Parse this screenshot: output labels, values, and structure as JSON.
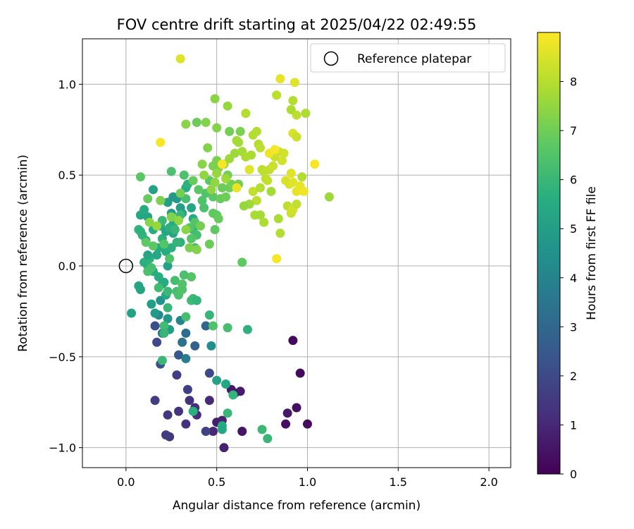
{
  "chart_data": {
    "type": "scatter",
    "title": "FOV centre drift starting at 2025/04/22 02:49:55",
    "xlabel": "Angular distance from reference (arcmin)",
    "ylabel": "Rotation from reference (arcmin)",
    "xlim": [
      -0.24,
      2.12
    ],
    "ylim": [
      -1.11,
      1.25
    ],
    "x_ticks": [
      0.0,
      0.5,
      1.0,
      1.5,
      2.0
    ],
    "x_tick_labels": [
      "0.0",
      "0.5",
      "1.0",
      "1.5",
      "2.0"
    ],
    "y_ticks": [
      -1.0,
      -0.5,
      0.0,
      0.5,
      1.0
    ],
    "y_tick_labels": [
      "−1.0",
      "−0.5",
      "0.0",
      "0.5",
      "1.0"
    ],
    "grid": true,
    "legend": {
      "placement": "top-right",
      "entries": [
        "Reference platepar"
      ]
    },
    "reference_point": {
      "x": 0.0,
      "y": 0.0
    },
    "colorbar": {
      "label": "Hours from first FF file",
      "colormap": "viridis",
      "range": [
        0,
        9
      ],
      "ticks": [
        0,
        1,
        2,
        3,
        4,
        5,
        6,
        7,
        8
      ],
      "tick_labels": [
        "0",
        "1",
        "2",
        "3",
        "4",
        "5",
        "6",
        "7",
        "8"
      ]
    },
    "points": [
      {
        "x": 0.92,
        "y": -0.41,
        "h": 0.2
      },
      {
        "x": 0.96,
        "y": -0.59,
        "h": 0.2
      },
      {
        "x": 0.94,
        "y": -0.78,
        "h": 0.4
      },
      {
        "x": 1.0,
        "y": -0.87,
        "h": 0.3
      },
      {
        "x": 0.88,
        "y": -0.87,
        "h": 0.4
      },
      {
        "x": 0.89,
        "y": -0.81,
        "h": 0.6
      },
      {
        "x": 0.64,
        "y": -0.91,
        "h": 0.5
      },
      {
        "x": 0.58,
        "y": -0.68,
        "h": 0.6
      },
      {
        "x": 0.6,
        "y": -0.7,
        "h": 0.6
      },
      {
        "x": 0.63,
        "y": -0.69,
        "h": 0.7
      },
      {
        "x": 0.5,
        "y": -0.86,
        "h": 0.8
      },
      {
        "x": 0.53,
        "y": -0.85,
        "h": 0.9
      },
      {
        "x": 0.54,
        "y": -1.0,
        "h": 0.9
      },
      {
        "x": 0.48,
        "y": -0.91,
        "h": 1.0
      },
      {
        "x": 0.46,
        "y": -0.74,
        "h": 1.1
      },
      {
        "x": 0.39,
        "y": -0.82,
        "h": 1.1
      },
      {
        "x": 0.38,
        "y": -0.78,
        "h": 1.2
      },
      {
        "x": 0.35,
        "y": -0.74,
        "h": 1.3
      },
      {
        "x": 0.33,
        "y": -0.87,
        "h": 1.3
      },
      {
        "x": 0.29,
        "y": -0.8,
        "h": 1.4
      },
      {
        "x": 0.23,
        "y": -0.82,
        "h": 1.5
      },
      {
        "x": 0.24,
        "y": -0.94,
        "h": 1.5
      },
      {
        "x": 0.22,
        "y": -0.93,
        "h": 1.6
      },
      {
        "x": 0.16,
        "y": -0.74,
        "h": 1.6
      },
      {
        "x": 0.34,
        "y": -0.68,
        "h": 1.7
      },
      {
        "x": 0.28,
        "y": -0.6,
        "h": 1.7
      },
      {
        "x": 0.44,
        "y": -0.91,
        "h": 1.8
      },
      {
        "x": 0.46,
        "y": -0.59,
        "h": 2.0
      },
      {
        "x": 0.17,
        "y": -0.42,
        "h": 2.0
      },
      {
        "x": 0.16,
        "y": -0.33,
        "h": 2.2
      },
      {
        "x": 0.19,
        "y": -0.54,
        "h": 2.3
      },
      {
        "x": 0.29,
        "y": -0.49,
        "h": 2.5
      },
      {
        "x": 0.38,
        "y": -0.44,
        "h": 2.8
      },
      {
        "x": 0.44,
        "y": -0.33,
        "h": 3.0
      },
      {
        "x": 0.33,
        "y": -0.37,
        "h": 3.2
      },
      {
        "x": 0.31,
        "y": -0.42,
        "h": 3.4
      },
      {
        "x": 0.2,
        "y": -0.37,
        "h": 3.5
      },
      {
        "x": 0.33,
        "y": -0.51,
        "h": 3.8
      },
      {
        "x": 0.3,
        "y": -0.3,
        "h": 4.0
      },
      {
        "x": 0.18,
        "y": -0.27,
        "h": 4.2
      },
      {
        "x": 0.47,
        "y": -0.44,
        "h": 4.5
      },
      {
        "x": 0.19,
        "y": -0.19,
        "h": 4.6
      },
      {
        "x": 0.23,
        "y": -0.29,
        "h": 4.8
      },
      {
        "x": 0.16,
        "y": -0.26,
        "h": 4.9
      },
      {
        "x": 0.24,
        "y": -0.35,
        "h": 5.0
      },
      {
        "x": 0.14,
        "y": -0.21,
        "h": 5.1
      },
      {
        "x": 0.03,
        "y": -0.26,
        "h": 5.2
      },
      {
        "x": 0.07,
        "y": -0.11,
        "h": 5.3
      },
      {
        "x": 0.08,
        "y": -0.13,
        "h": 5.3
      },
      {
        "x": 0.22,
        "y": -0.16,
        "h": 5.4
      },
      {
        "x": 0.2,
        "y": -0.1,
        "h": 5.5
      },
      {
        "x": 0.21,
        "y": -0.09,
        "h": 5.5
      },
      {
        "x": 0.18,
        "y": -0.06,
        "h": 5.6
      },
      {
        "x": 0.15,
        "y": -0.03,
        "h": 5.6
      },
      {
        "x": 0.12,
        "y": 0.0,
        "h": 5.7
      },
      {
        "x": 0.1,
        "y": 0.02,
        "h": 5.7
      },
      {
        "x": 0.13,
        "y": 0.04,
        "h": 5.8
      },
      {
        "x": 0.23,
        "y": 0.0,
        "h": 5.2
      },
      {
        "x": 0.12,
        "y": 0.06,
        "h": 5.3
      },
      {
        "x": 0.17,
        "y": 0.06,
        "h": 5.4
      },
      {
        "x": 0.18,
        "y": 0.1,
        "h": 5.5
      },
      {
        "x": 0.22,
        "y": 0.08,
        "h": 5.6
      },
      {
        "x": 0.25,
        "y": 0.1,
        "h": 5.7
      },
      {
        "x": 0.2,
        "y": 0.15,
        "h": 5.8
      },
      {
        "x": 0.09,
        "y": 0.17,
        "h": 5.9
      },
      {
        "x": 0.07,
        "y": 0.2,
        "h": 5.9
      },
      {
        "x": 0.08,
        "y": 0.19,
        "h": 5.8
      },
      {
        "x": 0.11,
        "y": 0.14,
        "h": 5.7
      },
      {
        "x": 0.15,
        "y": 0.2,
        "h": 5.6
      },
      {
        "x": 0.19,
        "y": 0.22,
        "h": 5.5
      },
      {
        "x": 0.22,
        "y": 0.19,
        "h": 5.4
      },
      {
        "x": 0.26,
        "y": 0.18,
        "h": 5.3
      },
      {
        "x": 0.12,
        "y": 0.27,
        "h": 5.3
      },
      {
        "x": 0.08,
        "y": 0.28,
        "h": 5.4
      },
      {
        "x": 0.1,
        "y": 0.31,
        "h": 5.5
      },
      {
        "x": 0.15,
        "y": 0.42,
        "h": 5.2
      },
      {
        "x": 0.23,
        "y": 0.35,
        "h": 5.1
      },
      {
        "x": 0.25,
        "y": 0.29,
        "h": 5.0
      },
      {
        "x": 0.26,
        "y": 0.38,
        "h": 4.9
      },
      {
        "x": 0.28,
        "y": 0.37,
        "h": 4.9
      },
      {
        "x": 0.3,
        "y": 0.32,
        "h": 5.0
      },
      {
        "x": 0.31,
        "y": 0.29,
        "h": 5.2
      },
      {
        "x": 0.36,
        "y": 0.32,
        "h": 5.4
      },
      {
        "x": 0.37,
        "y": 0.26,
        "h": 5.5
      },
      {
        "x": 0.26,
        "y": 0.23,
        "h": 5.6
      },
      {
        "x": 0.24,
        "y": 0.21,
        "h": 5.7
      },
      {
        "x": 0.3,
        "y": 0.13,
        "h": 5.8
      },
      {
        "x": 0.28,
        "y": 0.13,
        "h": 5.9
      },
      {
        "x": 0.27,
        "y": 0.2,
        "h": 6.0
      },
      {
        "x": 0.2,
        "y": 0.25,
        "h": 6.1
      },
      {
        "x": 0.33,
        "y": 0.43,
        "h": 5.6
      },
      {
        "x": 0.34,
        "y": 0.45,
        "h": 5.8
      },
      {
        "x": 0.3,
        "y": 0.28,
        "h": 6.0
      },
      {
        "x": 0.37,
        "y": 0.2,
        "h": 6.1
      },
      {
        "x": 0.38,
        "y": 0.1,
        "h": 6.2
      },
      {
        "x": 0.39,
        "y": 0.17,
        "h": 6.3
      },
      {
        "x": 0.33,
        "y": 0.37,
        "h": 6.3
      },
      {
        "x": 0.32,
        "y": 0.5,
        "h": 6.4
      },
      {
        "x": 0.25,
        "y": 0.52,
        "h": 6.4
      },
      {
        "x": 0.43,
        "y": 0.32,
        "h": 6.4
      },
      {
        "x": 0.42,
        "y": 0.36,
        "h": 6.5
      },
      {
        "x": 0.44,
        "y": 0.4,
        "h": 6.5
      },
      {
        "x": 0.38,
        "y": 0.24,
        "h": 6.6
      },
      {
        "x": 0.36,
        "y": 0.15,
        "h": 6.6
      },
      {
        "x": 0.35,
        "y": 0.21,
        "h": 6.6
      },
      {
        "x": 0.4,
        "y": 0.42,
        "h": 6.7
      },
      {
        "x": 0.46,
        "y": 0.47,
        "h": 6.7
      },
      {
        "x": 0.48,
        "y": 0.38,
        "h": 6.7
      },
      {
        "x": 0.48,
        "y": 0.29,
        "h": 6.8
      },
      {
        "x": 0.49,
        "y": 0.2,
        "h": 6.8
      },
      {
        "x": 0.5,
        "y": 0.28,
        "h": 6.8
      },
      {
        "x": 0.51,
        "y": 0.26,
        "h": 6.9
      },
      {
        "x": 0.52,
        "y": 0.37,
        "h": 6.9
      },
      {
        "x": 0.53,
        "y": 0.43,
        "h": 7.0
      },
      {
        "x": 0.55,
        "y": 0.38,
        "h": 7.0
      },
      {
        "x": 0.57,
        "y": 0.43,
        "h": 7.0
      },
      {
        "x": 0.58,
        "y": 0.45,
        "h": 7.1
      },
      {
        "x": 0.62,
        "y": 0.45,
        "h": 7.1
      },
      {
        "x": 0.56,
        "y": 0.5,
        "h": 7.1
      },
      {
        "x": 0.51,
        "y": 0.54,
        "h": 7.2
      },
      {
        "x": 0.5,
        "y": 0.58,
        "h": 7.2
      },
      {
        "x": 0.48,
        "y": 0.55,
        "h": 7.2
      },
      {
        "x": 0.45,
        "y": 0.65,
        "h": 7.3
      },
      {
        "x": 0.44,
        "y": 0.79,
        "h": 7.3
      },
      {
        "x": 0.39,
        "y": 0.79,
        "h": 7.0
      },
      {
        "x": 0.33,
        "y": 0.78,
        "h": 7.4
      },
      {
        "x": 0.42,
        "y": 0.56,
        "h": 7.4
      },
      {
        "x": 0.43,
        "y": 0.5,
        "h": 7.5
      },
      {
        "x": 0.47,
        "y": 0.42,
        "h": 7.5
      },
      {
        "x": 0.49,
        "y": 0.46,
        "h": 7.5
      },
      {
        "x": 0.5,
        "y": 0.51,
        "h": 7.6
      },
      {
        "x": 0.54,
        "y": 0.56,
        "h": 7.6
      },
      {
        "x": 0.55,
        "y": 0.48,
        "h": 7.7
      },
      {
        "x": 0.57,
        "y": 0.59,
        "h": 7.7
      },
      {
        "x": 0.6,
        "y": 0.62,
        "h": 7.7
      },
      {
        "x": 0.61,
        "y": 0.69,
        "h": 7.8
      },
      {
        "x": 0.62,
        "y": 0.68,
        "h": 7.8
      },
      {
        "x": 0.64,
        "y": 0.63,
        "h": 7.8
      },
      {
        "x": 0.66,
        "y": 0.6,
        "h": 7.9
      },
      {
        "x": 0.69,
        "y": 0.61,
        "h": 7.9
      },
      {
        "x": 0.7,
        "y": 0.72,
        "h": 8.0
      },
      {
        "x": 0.72,
        "y": 0.74,
        "h": 8.0
      },
      {
        "x": 0.73,
        "y": 0.67,
        "h": 8.0
      },
      {
        "x": 0.74,
        "y": 0.65,
        "h": 8.1
      },
      {
        "x": 0.75,
        "y": 0.53,
        "h": 8.1
      },
      {
        "x": 0.76,
        "y": 0.52,
        "h": 8.1
      },
      {
        "x": 0.77,
        "y": 0.48,
        "h": 8.2
      },
      {
        "x": 0.78,
        "y": 0.47,
        "h": 8.2
      },
      {
        "x": 0.79,
        "y": 0.53,
        "h": 8.2
      },
      {
        "x": 0.81,
        "y": 0.55,
        "h": 8.3
      },
      {
        "x": 0.82,
        "y": 0.6,
        "h": 8.3
      },
      {
        "x": 0.84,
        "y": 0.63,
        "h": 8.3
      },
      {
        "x": 0.86,
        "y": 0.58,
        "h": 8.4
      },
      {
        "x": 0.87,
        "y": 0.62,
        "h": 8.4
      },
      {
        "x": 0.88,
        "y": 0.47,
        "h": 8.5
      },
      {
        "x": 0.9,
        "y": 0.45,
        "h": 8.5
      },
      {
        "x": 0.91,
        "y": 0.51,
        "h": 8.6
      },
      {
        "x": 0.92,
        "y": 0.46,
        "h": 8.6
      },
      {
        "x": 0.94,
        "y": 0.41,
        "h": 8.7
      },
      {
        "x": 0.96,
        "y": 0.44,
        "h": 8.7
      },
      {
        "x": 0.98,
        "y": 0.41,
        "h": 8.8
      },
      {
        "x": 1.04,
        "y": 0.56,
        "h": 8.9
      },
      {
        "x": 0.19,
        "y": 0.68,
        "h": 8.9
      },
      {
        "x": 0.3,
        "y": 1.14,
        "h": 8.6
      },
      {
        "x": 0.83,
        "y": 0.04,
        "h": 8.9
      },
      {
        "x": 0.79,
        "y": 0.62,
        "h": 8.8
      },
      {
        "x": 0.82,
        "y": 0.64,
        "h": 8.9
      },
      {
        "x": 0.53,
        "y": 0.56,
        "h": 8.9
      },
      {
        "x": 0.61,
        "y": 0.43,
        "h": 8.7
      },
      {
        "x": 0.68,
        "y": 0.53,
        "h": 8.6
      },
      {
        "x": 0.7,
        "y": 0.41,
        "h": 8.2
      },
      {
        "x": 0.72,
        "y": 0.36,
        "h": 8.1
      },
      {
        "x": 0.74,
        "y": 0.43,
        "h": 8.0
      },
      {
        "x": 0.76,
        "y": 0.24,
        "h": 7.9
      },
      {
        "x": 0.71,
        "y": 0.28,
        "h": 7.9
      },
      {
        "x": 0.74,
        "y": 0.28,
        "h": 7.8
      },
      {
        "x": 0.68,
        "y": 0.34,
        "h": 7.7
      },
      {
        "x": 0.65,
        "y": 0.33,
        "h": 7.6
      },
      {
        "x": 0.8,
        "y": 0.41,
        "h": 7.8
      },
      {
        "x": 0.84,
        "y": 0.26,
        "h": 7.9
      },
      {
        "x": 0.85,
        "y": 0.18,
        "h": 8.0
      },
      {
        "x": 0.89,
        "y": 0.33,
        "h": 8.1
      },
      {
        "x": 0.91,
        "y": 0.29,
        "h": 8.3
      },
      {
        "x": 0.92,
        "y": 0.31,
        "h": 8.4
      },
      {
        "x": 0.94,
        "y": 0.34,
        "h": 8.2
      },
      {
        "x": 0.97,
        "y": 0.49,
        "h": 8.0
      },
      {
        "x": 1.12,
        "y": 0.38,
        "h": 7.7
      },
      {
        "x": 0.85,
        "y": 1.03,
        "h": 8.7
      },
      {
        "x": 0.93,
        "y": 1.01,
        "h": 8.6
      },
      {
        "x": 0.83,
        "y": 0.94,
        "h": 8.1
      },
      {
        "x": 0.92,
        "y": 0.91,
        "h": 8.0
      },
      {
        "x": 0.91,
        "y": 0.86,
        "h": 7.9
      },
      {
        "x": 0.94,
        "y": 0.83,
        "h": 8.1
      },
      {
        "x": 0.99,
        "y": 0.84,
        "h": 7.9
      },
      {
        "x": 0.92,
        "y": 0.73,
        "h": 8.5
      },
      {
        "x": 0.94,
        "y": 0.71,
        "h": 8.3
      },
      {
        "x": 0.66,
        "y": 0.84,
        "h": 8.0
      },
      {
        "x": 0.56,
        "y": 0.88,
        "h": 7.6
      },
      {
        "x": 0.49,
        "y": 0.92,
        "h": 7.4
      },
      {
        "x": 0.5,
        "y": 0.76,
        "h": 7.3
      },
      {
        "x": 0.57,
        "y": 0.74,
        "h": 7.1
      },
      {
        "x": 0.63,
        "y": 0.74,
        "h": 7.2
      },
      {
        "x": 0.46,
        "y": 0.12,
        "h": 7.0
      },
      {
        "x": 0.41,
        "y": 0.22,
        "h": 7.1
      },
      {
        "x": 0.35,
        "y": 0.1,
        "h": 7.2
      },
      {
        "x": 0.39,
        "y": 0.09,
        "h": 7.3
      },
      {
        "x": 0.33,
        "y": 0.2,
        "h": 7.4
      },
      {
        "x": 0.29,
        "y": 0.25,
        "h": 7.5
      },
      {
        "x": 0.25,
        "y": 0.27,
        "h": 7.3
      },
      {
        "x": 0.17,
        "y": 0.22,
        "h": 7.6
      },
      {
        "x": 0.13,
        "y": 0.24,
        "h": 7.4
      },
      {
        "x": 0.19,
        "y": 0.36,
        "h": 7.2
      },
      {
        "x": 0.3,
        "y": 0.4,
        "h": 7.1
      },
      {
        "x": 0.37,
        "y": 0.47,
        "h": 6.9
      },
      {
        "x": 0.08,
        "y": 0.49,
        "h": 6.7
      },
      {
        "x": 0.12,
        "y": 0.37,
        "h": 6.9
      },
      {
        "x": 0.11,
        "y": 0.13,
        "h": 6.8
      },
      {
        "x": 0.15,
        "y": 0.11,
        "h": 6.7
      },
      {
        "x": 0.21,
        "y": 0.12,
        "h": 6.6
      },
      {
        "x": 0.24,
        "y": 0.04,
        "h": 6.5
      },
      {
        "x": 0.12,
        "y": -0.03,
        "h": 6.4
      },
      {
        "x": 0.14,
        "y": -0.01,
        "h": 6.3
      },
      {
        "x": 0.18,
        "y": -0.12,
        "h": 6.2
      },
      {
        "x": 0.23,
        "y": -0.14,
        "h": 6.1
      },
      {
        "x": 0.23,
        "y": -0.23,
        "h": 6.0
      },
      {
        "x": 0.28,
        "y": -0.14,
        "h": 6.3
      },
      {
        "x": 0.29,
        "y": -0.16,
        "h": 6.4
      },
      {
        "x": 0.27,
        "y": -0.08,
        "h": 6.3
      },
      {
        "x": 0.31,
        "y": -0.1,
        "h": 6.5
      },
      {
        "x": 0.31,
        "y": -0.13,
        "h": 6.5
      },
      {
        "x": 0.36,
        "y": -0.19,
        "h": 6.2
      },
      {
        "x": 0.37,
        "y": -0.18,
        "h": 6.1
      },
      {
        "x": 0.39,
        "y": -0.19,
        "h": 5.9
      },
      {
        "x": 0.36,
        "y": -0.06,
        "h": 6.6
      },
      {
        "x": 0.32,
        "y": -0.05,
        "h": 6.4
      },
      {
        "x": 0.33,
        "y": -0.28,
        "h": 6.3
      },
      {
        "x": 0.21,
        "y": -0.33,
        "h": 6.2
      },
      {
        "x": 0.21,
        "y": -0.37,
        "h": 6.0
      },
      {
        "x": 0.2,
        "y": -0.52,
        "h": 6.1
      },
      {
        "x": 0.48,
        "y": -0.33,
        "h": 6.5
      },
      {
        "x": 0.46,
        "y": -0.27,
        "h": 6.0
      },
      {
        "x": 0.56,
        "y": -0.34,
        "h": 6.3
      },
      {
        "x": 0.67,
        "y": -0.35,
        "h": 5.8
      },
      {
        "x": 0.64,
        "y": 0.02,
        "h": 6.8
      },
      {
        "x": 0.5,
        "y": -0.63,
        "h": 5.2
      },
      {
        "x": 0.55,
        "y": -0.65,
        "h": 5.4
      },
      {
        "x": 0.59,
        "y": -0.71,
        "h": 5.9
      },
      {
        "x": 0.56,
        "y": -0.81,
        "h": 6.0
      },
      {
        "x": 0.53,
        "y": -0.88,
        "h": 5.6
      },
      {
        "x": 0.53,
        "y": -0.9,
        "h": 5.4
      },
      {
        "x": 0.75,
        "y": -0.9,
        "h": 6.1
      },
      {
        "x": 0.78,
        "y": -0.95,
        "h": 6.0
      },
      {
        "x": 0.37,
        "y": -0.8,
        "h": 5.7
      }
    ]
  }
}
